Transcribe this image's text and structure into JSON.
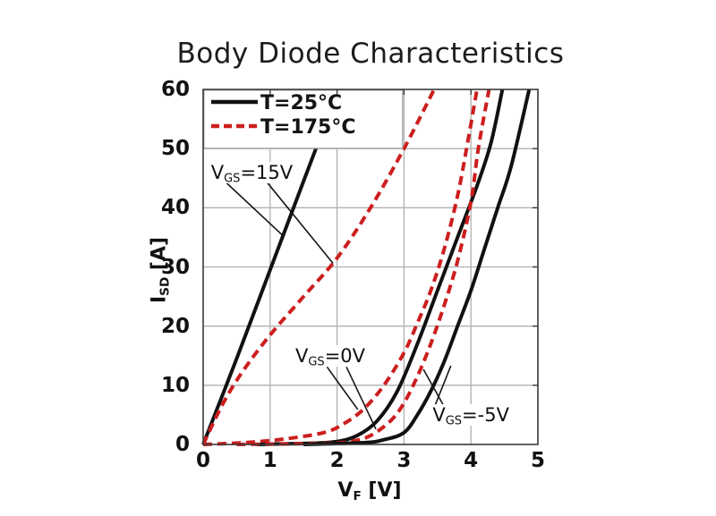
{
  "title": "Body Diode Characteristics",
  "chart_data": {
    "type": "line",
    "title": "Body Diode Characteristics",
    "xlabel": {
      "pre": "V",
      "sub": "F",
      "post": " [V]"
    },
    "ylabel": {
      "pre": "I",
      "sub": "SD",
      "post": " [A]"
    },
    "xlim": [
      0,
      5
    ],
    "ylim": [
      0,
      60
    ],
    "x_ticks": [
      0,
      1,
      2,
      3,
      4,
      5
    ],
    "y_ticks": [
      0,
      10,
      20,
      30,
      40,
      50,
      60
    ],
    "grid": true,
    "grid_color": "#b0b0b0",
    "frame_color": "#3a3a3a",
    "colors": {
      "t25": "#111111",
      "t175": "#cc1e1e"
    },
    "legend": {
      "position": "top-left",
      "items": [
        {
          "label": "T=25°C",
          "series_color": "t25",
          "dashed": false
        },
        {
          "label": "T=175°C",
          "series_color": "t175",
          "dashed": true
        }
      ]
    },
    "series": [
      {
        "name": "VGS=15V, T=25C",
        "vgs": "15V",
        "temp": "25°C",
        "color": "t25",
        "dashed": false,
        "points": [
          [
            0,
            0
          ],
          [
            0.5,
            14.5
          ],
          [
            1.0,
            29.5
          ],
          [
            1.5,
            44.5
          ],
          [
            2.02,
            60
          ]
        ]
      },
      {
        "name": "VGS=15V, T=175C",
        "vgs": "15V",
        "temp": "175°C",
        "color": "t175",
        "dashed": true,
        "points": [
          [
            0,
            0
          ],
          [
            0.3,
            7
          ],
          [
            0.6,
            12.5
          ],
          [
            1.0,
            18.5
          ],
          [
            1.5,
            25
          ],
          [
            2.0,
            31.5
          ],
          [
            2.5,
            40
          ],
          [
            3.0,
            50
          ],
          [
            3.45,
            60
          ]
        ]
      },
      {
        "name": "VGS=0V, T=175C",
        "vgs": "0V",
        "temp": "175°C",
        "color": "t175",
        "dashed": true,
        "points": [
          [
            0,
            0
          ],
          [
            0.6,
            0.3
          ],
          [
            1.2,
            0.9
          ],
          [
            1.8,
            2
          ],
          [
            2.1,
            3.5
          ],
          [
            2.4,
            6
          ],
          [
            2.7,
            10
          ],
          [
            3.0,
            15.5
          ],
          [
            3.2,
            20.5
          ],
          [
            3.4,
            26
          ],
          [
            3.6,
            33
          ],
          [
            3.8,
            42
          ],
          [
            3.95,
            51
          ],
          [
            4.09,
            60
          ]
        ]
      },
      {
        "name": "VGS=0V, T=25C",
        "vgs": "0V",
        "temp": "25°C",
        "color": "t25",
        "dashed": false,
        "points": [
          [
            0.8,
            0
          ],
          [
            1.6,
            0.2
          ],
          [
            2.0,
            0.5
          ],
          [
            2.3,
            1.5
          ],
          [
            2.6,
            4
          ],
          [
            2.9,
            9
          ],
          [
            3.2,
            17
          ],
          [
            3.5,
            26
          ],
          [
            3.8,
            35
          ],
          [
            4.1,
            44
          ],
          [
            4.3,
            51
          ],
          [
            4.47,
            60
          ]
        ]
      },
      {
        "name": "VGS=-5V, T=175C",
        "vgs": "-5V",
        "temp": "175°C",
        "color": "t175",
        "dashed": true,
        "points": [
          [
            0.5,
            0
          ],
          [
            1.8,
            0.2
          ],
          [
            2.2,
            0.5
          ],
          [
            2.5,
            1.5
          ],
          [
            2.8,
            4
          ],
          [
            3.0,
            7
          ],
          [
            3.2,
            11.5
          ],
          [
            3.4,
            17
          ],
          [
            3.6,
            23.5
          ],
          [
            3.8,
            31
          ],
          [
            4.0,
            41
          ],
          [
            4.11,
            50
          ],
          [
            4.27,
            60
          ]
        ]
      },
      {
        "name": "VGS=-5V, T=25C",
        "vgs": "-5V",
        "temp": "25°C",
        "color": "t25",
        "dashed": false,
        "points": [
          [
            1.5,
            0
          ],
          [
            2.4,
            0.3
          ],
          [
            2.7,
            0.8
          ],
          [
            3.0,
            2
          ],
          [
            3.2,
            5
          ],
          [
            3.4,
            9
          ],
          [
            3.6,
            14
          ],
          [
            3.8,
            20
          ],
          [
            4.0,
            26
          ],
          [
            4.2,
            33
          ],
          [
            4.4,
            40
          ],
          [
            4.6,
            47
          ],
          [
            4.87,
            60
          ]
        ]
      }
    ],
    "annotations": [
      {
        "pre": "V",
        "sub": "GS",
        "post": "=15V",
        "anchor": {
          "v": 0.09,
          "i": 47.8
        },
        "leaders": [
          [
            [
              0.33,
              44.4
            ],
            [
              1.2,
              35.2
            ]
          ],
          [
            [
              0.94,
              44.5
            ],
            [
              1.94,
              30.6
            ]
          ]
        ]
      },
      {
        "pre": "V",
        "sub": "GS",
        "post": "=0V",
        "anchor": {
          "v": 1.35,
          "i": 16.8
        },
        "leaders": [
          [
            [
              1.85,
              13.1
            ],
            [
              2.31,
              5.9
            ]
          ],
          [
            [
              2.14,
              13.1
            ],
            [
              2.58,
              2.6
            ]
          ]
        ]
      },
      {
        "pre": "V",
        "sub": "GS",
        "post": "=-5V",
        "anchor": {
          "v": 3.4,
          "i": 6.8
        },
        "leaders": [
          [
            [
              3.61,
              6.2
            ],
            [
              3.29,
              12.7
            ]
          ],
          [
            [
              3.45,
              6.2
            ],
            [
              3.7,
              13.3
            ]
          ]
        ]
      }
    ]
  }
}
